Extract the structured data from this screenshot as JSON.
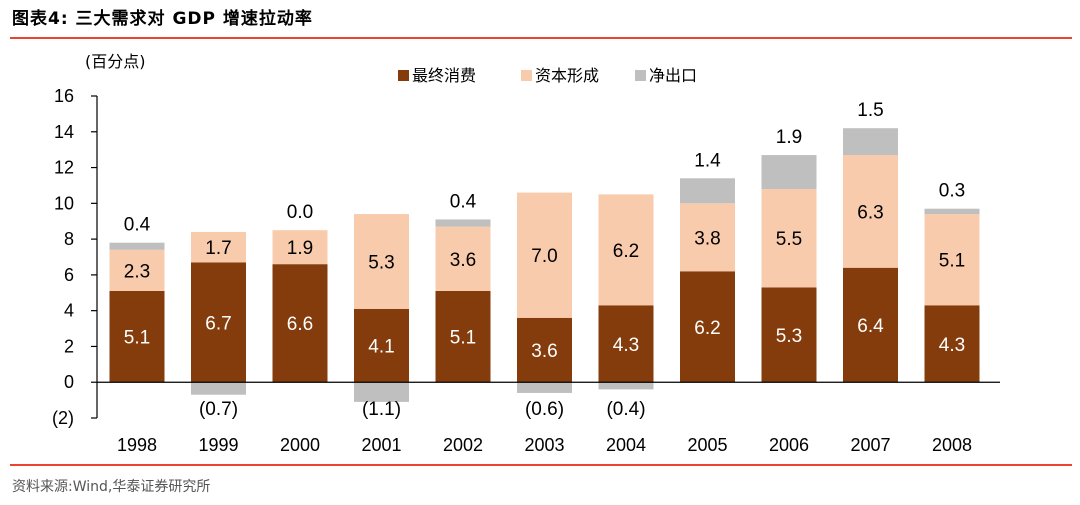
{
  "header": {
    "title": "图表4:  三大需求对 GDP 增速拉动率"
  },
  "footer": {
    "source": "资料来源:Wind,华泰证券研究所"
  },
  "colors": {
    "consumption": "#843c0c",
    "capital": "#f8cbad",
    "net_export": "#bfbfbf",
    "rule": "#e8462f"
  },
  "chart_data": {
    "type": "bar",
    "stacked": true,
    "unit_label": "(百分点)",
    "categories": [
      "1998",
      "1999",
      "2000",
      "2001",
      "2002",
      "2003",
      "2004",
      "2005",
      "2006",
      "2007",
      "2008"
    ],
    "series": [
      {
        "name": "最终消费",
        "values": [
          5.1,
          6.7,
          6.6,
          4.1,
          5.1,
          3.6,
          4.3,
          6.2,
          5.3,
          6.4,
          4.3
        ]
      },
      {
        "name": "资本形成",
        "values": [
          2.3,
          1.7,
          1.9,
          5.3,
          3.6,
          7.0,
          6.2,
          3.8,
          5.5,
          6.3,
          5.1
        ]
      },
      {
        "name": "净出口",
        "values": [
          0.4,
          -0.7,
          0.0,
          -1.1,
          0.4,
          -0.6,
          -0.4,
          1.4,
          1.9,
          1.5,
          0.3
        ]
      }
    ],
    "data_labels": {
      "consumption": [
        "5.1",
        "6.7",
        "6.6",
        "4.1",
        "5.1",
        "3.6",
        "4.3",
        "6.2",
        "5.3",
        "6.4",
        "4.3"
      ],
      "capital": [
        "2.3",
        "1.7",
        "1.9",
        "5.3",
        "3.6",
        "7.0",
        "6.2",
        "3.8",
        "5.5",
        "6.3",
        "5.1"
      ],
      "net_export": [
        "0.4",
        "(0.7)",
        "0.0",
        "(1.1)",
        "0.4",
        "(0.6)",
        "(0.4)",
        "1.4",
        "1.9",
        "1.5",
        "0.3"
      ]
    },
    "ylim": [
      -2,
      16
    ],
    "yticks": [
      -2,
      0,
      2,
      4,
      6,
      8,
      10,
      12,
      14,
      16
    ],
    "ytick_labels": [
      "(2)",
      "0",
      "2",
      "4",
      "6",
      "8",
      "10",
      "12",
      "14",
      "16"
    ],
    "legend_position": "top-center",
    "grid": false
  }
}
